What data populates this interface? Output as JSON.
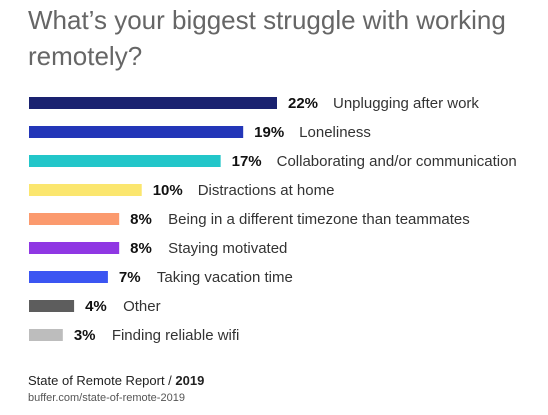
{
  "title": "What’s your biggest struggle with working remotely?",
  "chart_data": {
    "type": "bar",
    "orientation": "horizontal",
    "categories": [
      "Unplugging after work",
      "Loneliness",
      "Collaborating and/or communication",
      "Distractions at home",
      "Being in a different timezone than teammates",
      "Staying motivated",
      "Taking vacation time",
      "Other",
      "Finding reliable wifi"
    ],
    "values": [
      22,
      19,
      17,
      10,
      8,
      8,
      7,
      4,
      3
    ],
    "value_labels": [
      "22%",
      "19%",
      "17%",
      "10%",
      "8%",
      "8%",
      "7%",
      "4%",
      "3%"
    ],
    "colors": [
      "#1a2270",
      "#2336b8",
      "#22c6c9",
      "#fbe66e",
      "#fb9a6e",
      "#8f37e3",
      "#3b55f2",
      "#5d5d5d",
      "#bdbdbd"
    ],
    "xlim": [
      0,
      22
    ],
    "grid": false,
    "legend": "none"
  },
  "footer": {
    "source_prefix": "State of Remote Report / ",
    "source_year": "2019",
    "url": "buffer.com/state-of-remote-2019"
  }
}
